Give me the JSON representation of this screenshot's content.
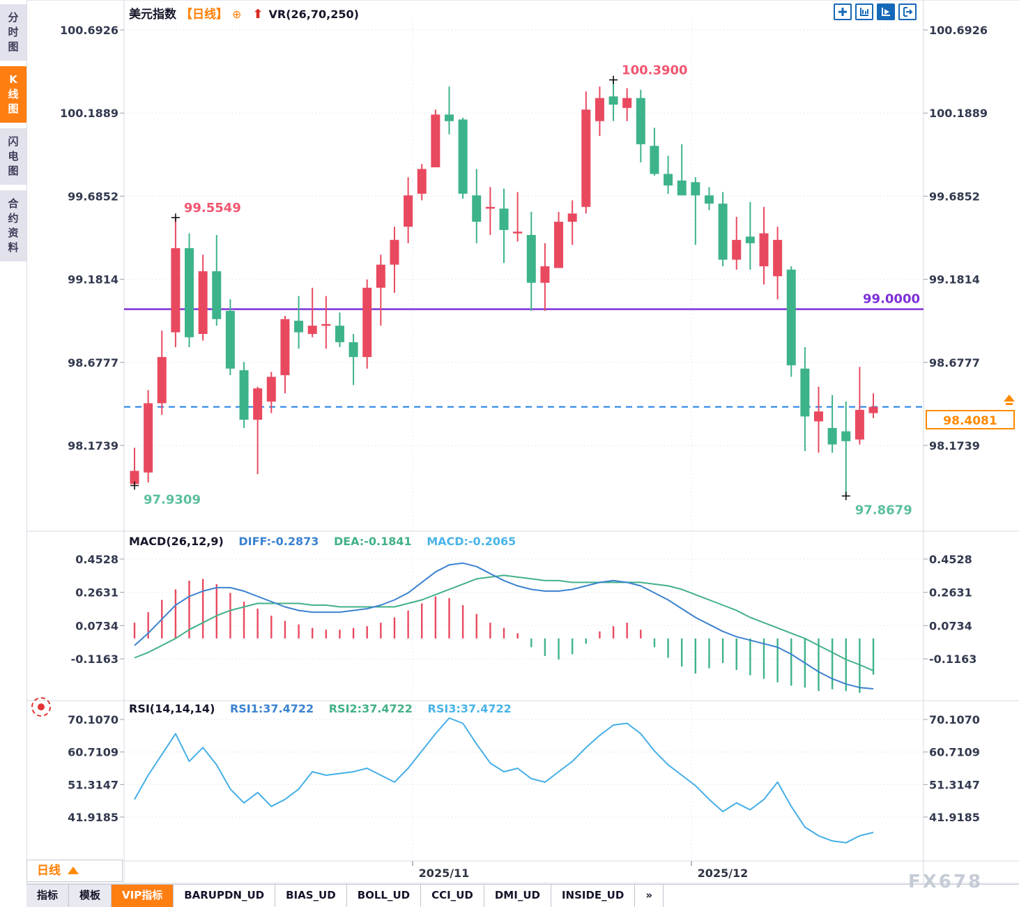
{
  "title": {
    "symbol": "美元指数",
    "period_tag": "【日线】",
    "plus_icon": "⊕",
    "vr_label": "VR(26,70,250)"
  },
  "toolbar": {
    "icons": [
      "pan-tool-icon",
      "axis-range-icon",
      "axis-play-icon",
      "exit-chart-icon"
    ]
  },
  "sidebar": {
    "items": [
      {
        "label": "分时图",
        "active": false
      },
      {
        "label": "K线图",
        "active": true
      },
      {
        "label": "闪电图",
        "active": false
      },
      {
        "label": "合约资料",
        "active": false
      }
    ]
  },
  "bottom": {
    "period_label": "日线",
    "tabs": [
      {
        "label": "指标",
        "style": "gray"
      },
      {
        "label": "模板",
        "style": "gray"
      },
      {
        "label": "VIP指标",
        "style": "vip"
      },
      {
        "label": "BARUPDN_UD",
        "style": "white"
      },
      {
        "label": "BIAS_UD",
        "style": "white"
      },
      {
        "label": "BOLL_UD",
        "style": "white"
      },
      {
        "label": "CCI_UD",
        "style": "white"
      },
      {
        "label": "DMI_UD",
        "style": "white"
      },
      {
        "label": "INSIDE_UD",
        "style": "white"
      },
      {
        "label": "»",
        "style": "white"
      }
    ]
  },
  "watermark": "FX678",
  "colors": {
    "red": "#e9495f",
    "green": "#3db389",
    "diff_line": "#3b82d0",
    "dea_line": "#42b186",
    "rsi_line": "#45aee6",
    "purple": "#7c2fd8",
    "dashed_blue": "#1e7fe8",
    "orange": "#ff7e12",
    "axis_text": "#333a4f",
    "grid": "#dfe3ea",
    "border": "#d4d8e0",
    "marker_high": "#f25570",
    "marker_low": "#5bbf9d"
  },
  "chart_data": {
    "type": "candlestick",
    "symbol": "美元指数",
    "period": "日线",
    "overlay_indicator": "VR(26,70,250)",
    "y_axis_ticks": [
      "100.6926",
      "100.1889",
      "99.6852",
      "99.1814",
      "98.6777",
      "98.1739"
    ],
    "x_axis_ticks": [
      {
        "label": "2025/11",
        "x": 637,
        "grid_x": 592
      },
      {
        "label": "2025/12",
        "x": 1037,
        "grid_x": 992
      }
    ],
    "horizontal_line": {
      "label": "99.0000",
      "value": 99.0
    },
    "current_price_line": {
      "label": "98.4081",
      "value": 98.4081
    },
    "high_markers": [
      {
        "label": "99.5549",
        "value": 99.5549,
        "index": 3
      },
      {
        "label": "100.3900",
        "value": 100.39,
        "index": 35
      }
    ],
    "low_markers": [
      {
        "label": "97.9309",
        "value": 97.9309,
        "index": 0
      },
      {
        "label": "97.8679",
        "value": 97.8679,
        "index": 52
      }
    ],
    "candles_ohlc": [
      [
        97.94,
        98.16,
        97.931,
        98.02
      ],
      [
        98.01,
        98.51,
        97.95,
        98.43
      ],
      [
        98.43,
        98.87,
        98.36,
        98.71
      ],
      [
        98.86,
        99.5549,
        98.77,
        99.37
      ],
      [
        99.37,
        99.46,
        98.77,
        98.83
      ],
      [
        98.85,
        99.33,
        98.81,
        99.23
      ],
      [
        99.23,
        99.45,
        98.9,
        98.94
      ],
      [
        98.99,
        99.06,
        98.6,
        98.64
      ],
      [
        98.63,
        98.68,
        98.28,
        98.33
      ],
      [
        98.33,
        98.53,
        98.0,
        98.52
      ],
      [
        98.44,
        98.62,
        98.37,
        98.59
      ],
      [
        98.6,
        98.96,
        98.49,
        98.94
      ],
      [
        98.93,
        99.08,
        98.76,
        98.86
      ],
      [
        98.85,
        99.13,
        98.83,
        98.9
      ],
      [
        98.91,
        99.08,
        98.76,
        98.91
      ],
      [
        98.9,
        98.98,
        98.77,
        98.8
      ],
      [
        98.8,
        98.85,
        98.54,
        98.71
      ],
      [
        98.71,
        99.18,
        98.64,
        99.13
      ],
      [
        99.13,
        99.33,
        98.9,
        99.27
      ],
      [
        99.27,
        99.5,
        99.1,
        99.42
      ],
      [
        99.5,
        99.8,
        99.4,
        99.69
      ],
      [
        99.7,
        99.88,
        99.66,
        99.85
      ],
      [
        99.86,
        100.21,
        99.86,
        100.18
      ],
      [
        100.18,
        100.35,
        100.06,
        100.14
      ],
      [
        100.15,
        100.16,
        99.67,
        99.7
      ],
      [
        99.69,
        99.85,
        99.4,
        99.53
      ],
      [
        99.62,
        99.74,
        99.45,
        99.62
      ],
      [
        99.61,
        99.73,
        99.28,
        99.48
      ],
      [
        99.47,
        99.71,
        99.41,
        99.47
      ],
      [
        99.45,
        99.59,
        98.99,
        99.16
      ],
      [
        99.16,
        99.4,
        98.99,
        99.26
      ],
      [
        99.25,
        99.59,
        99.25,
        99.53
      ],
      [
        99.53,
        99.66,
        99.39,
        99.58
      ],
      [
        99.62,
        100.32,
        99.58,
        100.21
      ],
      [
        100.14,
        100.35,
        100.05,
        100.28
      ],
      [
        100.29,
        100.39,
        100.14,
        100.24
      ],
      [
        100.22,
        100.34,
        100.14,
        100.28
      ],
      [
        100.28,
        100.33,
        99.89,
        100.0
      ],
      [
        99.99,
        100.1,
        99.81,
        99.82
      ],
      [
        99.82,
        99.93,
        99.7,
        99.75
      ],
      [
        99.78,
        100.0,
        99.69,
        99.69
      ],
      [
        99.77,
        99.8,
        99.39,
        99.69
      ],
      [
        99.69,
        99.74,
        99.6,
        99.64
      ],
      [
        99.64,
        99.71,
        99.26,
        99.3
      ],
      [
        99.3,
        99.56,
        99.24,
        99.42
      ],
      [
        99.44,
        99.65,
        99.24,
        99.4
      ],
      [
        99.26,
        99.62,
        99.15,
        99.46
      ],
      [
        99.2,
        99.5,
        99.06,
        99.42
      ],
      [
        99.24,
        99.26,
        98.59,
        98.66
      ],
      [
        98.64,
        98.77,
        98.14,
        98.35
      ],
      [
        98.32,
        98.53,
        98.13,
        98.38
      ],
      [
        98.28,
        98.48,
        98.13,
        98.18
      ],
      [
        98.26,
        98.44,
        97.8679,
        98.2
      ],
      [
        98.21,
        98.65,
        98.18,
        98.39
      ],
      [
        98.37,
        98.49,
        98.34,
        98.4081
      ]
    ],
    "sub_charts": [
      {
        "type": "macd",
        "title": "MACD(26,12,9)",
        "legend": [
          "DIFF:-0.2873",
          "DEA:-0.1841",
          "MACD:-0.2065"
        ],
        "y_ticks": [
          "0.4528",
          "0.2631",
          "0.0734",
          "-0.1163"
        ],
        "diff": [
          -0.04,
          0.03,
          0.11,
          0.19,
          0.24,
          0.27,
          0.29,
          0.29,
          0.27,
          0.24,
          0.21,
          0.18,
          0.16,
          0.15,
          0.15,
          0.15,
          0.16,
          0.17,
          0.19,
          0.22,
          0.26,
          0.32,
          0.38,
          0.42,
          0.43,
          0.41,
          0.37,
          0.33,
          0.3,
          0.28,
          0.27,
          0.27,
          0.28,
          0.3,
          0.32,
          0.33,
          0.32,
          0.3,
          0.26,
          0.22,
          0.17,
          0.12,
          0.08,
          0.04,
          0.01,
          -0.01,
          -0.03,
          -0.05,
          -0.09,
          -0.14,
          -0.19,
          -0.23,
          -0.26,
          -0.28,
          -0.2873
        ],
        "dea": [
          -0.11,
          -0.08,
          -0.04,
          0.0,
          0.05,
          0.09,
          0.13,
          0.16,
          0.18,
          0.2,
          0.2,
          0.2,
          0.2,
          0.19,
          0.19,
          0.18,
          0.18,
          0.18,
          0.18,
          0.18,
          0.2,
          0.22,
          0.25,
          0.28,
          0.31,
          0.34,
          0.35,
          0.36,
          0.35,
          0.34,
          0.33,
          0.33,
          0.32,
          0.32,
          0.32,
          0.32,
          0.32,
          0.32,
          0.31,
          0.3,
          0.28,
          0.25,
          0.22,
          0.19,
          0.16,
          0.12,
          0.09,
          0.06,
          0.03,
          0.0,
          -0.04,
          -0.08,
          -0.12,
          -0.15,
          -0.1841
        ],
        "hist": [
          0.09,
          0.15,
          0.22,
          0.28,
          0.33,
          0.34,
          0.31,
          0.26,
          0.21,
          0.17,
          0.13,
          0.1,
          0.08,
          0.06,
          0.05,
          0.05,
          0.06,
          0.07,
          0.09,
          0.12,
          0.16,
          0.2,
          0.24,
          0.23,
          0.19,
          0.14,
          0.09,
          0.06,
          0.03,
          -0.05,
          -0.1,
          -0.12,
          -0.09,
          -0.03,
          0.04,
          0.07,
          0.09,
          0.05,
          -0.05,
          -0.11,
          -0.16,
          -0.2,
          -0.17,
          -0.14,
          -0.18,
          -0.21,
          -0.23,
          -0.25,
          -0.27,
          -0.28,
          -0.3,
          -0.29,
          -0.3,
          -0.31,
          -0.2065
        ]
      },
      {
        "type": "rsi",
        "title": "RSI(14,14,14)",
        "legend": [
          "RSI1:37.4722",
          "RSI2:37.4722",
          "RSI3:37.4722"
        ],
        "y_ticks": [
          "70.1070",
          "60.7109",
          "51.3147",
          "41.9185"
        ],
        "rsi": [
          47,
          54,
          60,
          66,
          58,
          62,
          57,
          50,
          46,
          49,
          45,
          47,
          50,
          55,
          54,
          54.5,
          55,
          56,
          54,
          52,
          56,
          61,
          66,
          70.5,
          69,
          63,
          57.5,
          55,
          56,
          53,
          52,
          55,
          58,
          62,
          65.5,
          68.5,
          69,
          66,
          61,
          57,
          54,
          51,
          47,
          43.5,
          46,
          44,
          47,
          52,
          45,
          39,
          36.5,
          35,
          34.5,
          36.5,
          37.4722
        ]
      }
    ]
  }
}
